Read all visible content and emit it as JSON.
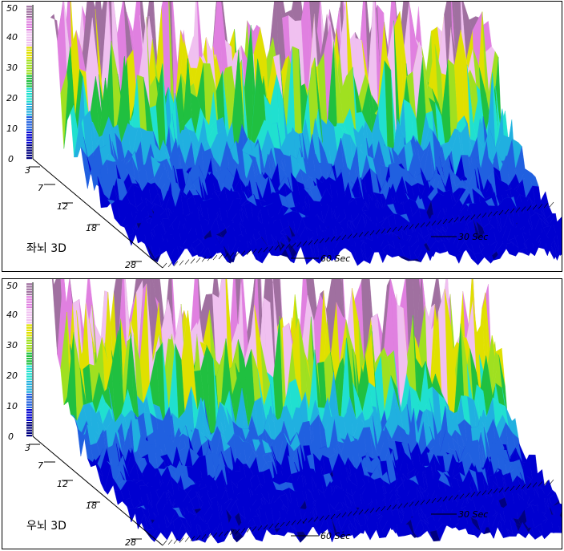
{
  "colors": {
    "scale": [
      "#000080",
      "#0000d0",
      "#2060e0",
      "#20b0e0",
      "#20e0d0",
      "#20c040",
      "#a0e020",
      "#e0e000",
      "#f0c0f0",
      "#e080e0",
      "#a070a0"
    ],
    "background": "#ffffff"
  },
  "chart_data": [
    {
      "type": "surface3d",
      "title": "좌뇌 3D",
      "z_axis": {
        "ticks": [
          "0",
          "10",
          "20",
          "30",
          "40",
          "50"
        ],
        "range": [
          0,
          50
        ]
      },
      "freq_axis": {
        "ticks": [
          "3",
          "7",
          "12",
          "18",
          "28"
        ],
        "range": [
          1,
          30
        ]
      },
      "time_axis": {
        "ticks": [
          "60 Sec",
          "30 Sec"
        ],
        "range": [
          0,
          70
        ]
      },
      "grid": true
    },
    {
      "type": "surface3d",
      "title": "우뇌 3D",
      "z_axis": {
        "ticks": [
          "0",
          "10",
          "20",
          "30",
          "40",
          "50"
        ],
        "range": [
          0,
          50
        ]
      },
      "freq_axis": {
        "ticks": [
          "3",
          "7",
          "12",
          "18",
          "28"
        ],
        "range": [
          1,
          30
        ]
      },
      "time_axis": {
        "ticks": [
          "60 Sec",
          "30 Sec"
        ],
        "range": [
          0,
          70
        ]
      },
      "grid": true
    }
  ]
}
